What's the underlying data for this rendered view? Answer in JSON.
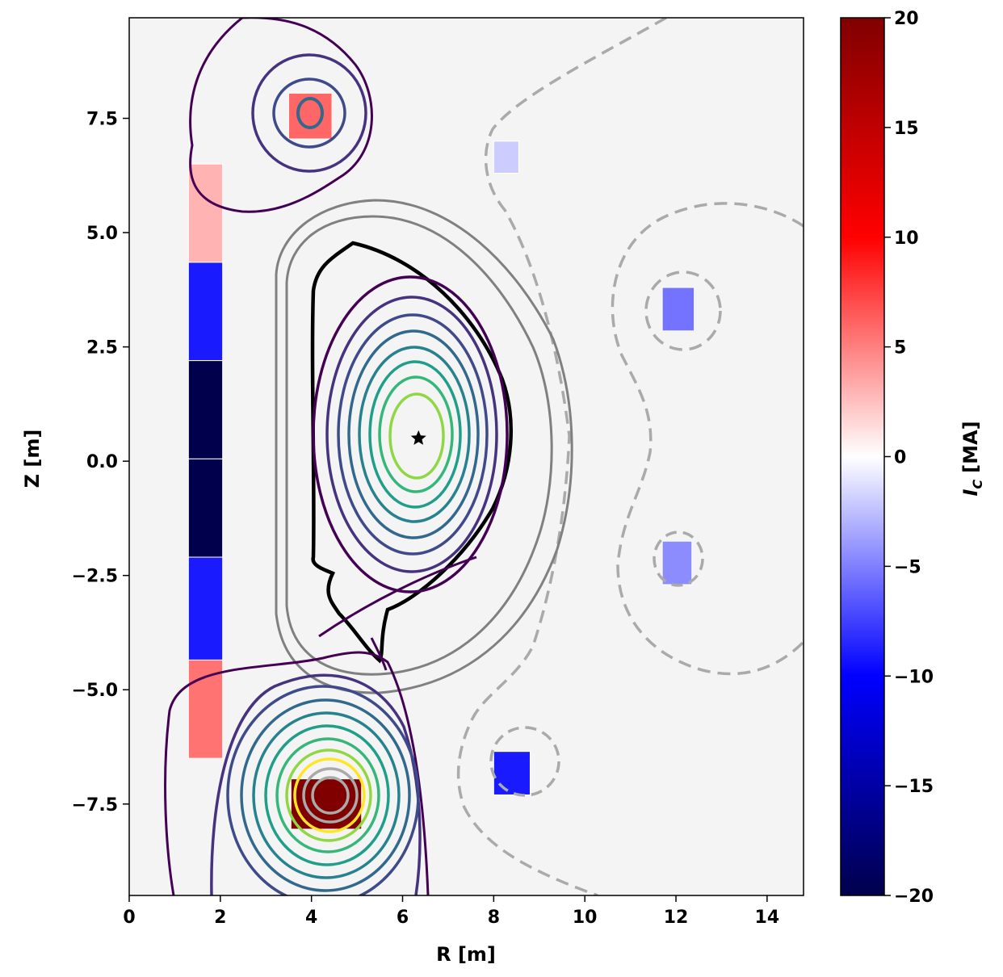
{
  "chart_data": {
    "type": "heatmap",
    "title": "",
    "xlabel": "R [m]",
    "ylabel": "Z [m]",
    "xlim": [
      0,
      14.8
    ],
    "ylim": [
      -9.5,
      9.7
    ],
    "xticks": [
      0,
      2,
      4,
      6,
      8,
      10,
      12,
      14
    ],
    "yticks": [
      -7.5,
      -5.0,
      -2.5,
      0.0,
      2.5,
      5.0,
      7.5
    ],
    "ytick_labels": [
      "−7.5",
      "−5.0",
      "−2.5",
      "0.0",
      "2.5",
      "5.0",
      "7.5"
    ],
    "grid": false,
    "colorbar": {
      "label": "I_C [MA]",
      "label_main": "I",
      "label_sub": "C",
      "label_unit": "[MA]",
      "range": [
        -20,
        20
      ],
      "ticks": [
        -20,
        -15,
        -10,
        -5,
        0,
        5,
        10,
        15,
        20
      ],
      "tick_labels": [
        "−20",
        "−15",
        "−10",
        "−5",
        "0",
        "5",
        "10",
        "15",
        "20"
      ],
      "colormap": "seismic"
    },
    "background_color": "#f4f4f4",
    "coils": [
      {
        "r0": 1.3,
        "r1": 2.05,
        "z0": 4.35,
        "z1": 6.5,
        "current": 3
      },
      {
        "r0": 1.3,
        "r1": 2.05,
        "z0": 2.2,
        "z1": 4.35,
        "current": -9
      },
      {
        "r0": 1.3,
        "r1": 2.05,
        "z0": 0.05,
        "z1": 2.2,
        "current": -20
      },
      {
        "r0": 1.3,
        "r1": 2.05,
        "z0": -2.1,
        "z1": 0.05,
        "current": -20
      },
      {
        "r0": 1.3,
        "r1": 2.05,
        "z0": -4.35,
        "z1": -2.1,
        "current": -9
      },
      {
        "r0": 1.3,
        "r1": 2.05,
        "z0": -6.5,
        "z1": -4.35,
        "current": 5.5
      },
      {
        "r0": 3.5,
        "r1": 4.45,
        "z0": 7.05,
        "z1": 8.05,
        "current": 6
      },
      {
        "r0": 8.0,
        "r1": 8.55,
        "z0": 6.3,
        "z1": 7.0,
        "current": -2
      },
      {
        "r0": 11.7,
        "r1": 12.4,
        "z0": 2.85,
        "z1": 3.8,
        "current": -5.5
      },
      {
        "r0": 11.7,
        "r1": 12.35,
        "z0": -2.7,
        "z1": -1.75,
        "current": -4.5
      },
      {
        "r0": 8.0,
        "r1": 8.8,
        "z0": -7.3,
        "z1": -6.35,
        "current": -9
      },
      {
        "r0": 3.55,
        "r1": 5.1,
        "z0": -8.05,
        "z1": -6.95,
        "current": 20
      }
    ],
    "magnetic_axis": {
      "r": 6.35,
      "z": 0.5
    }
  }
}
